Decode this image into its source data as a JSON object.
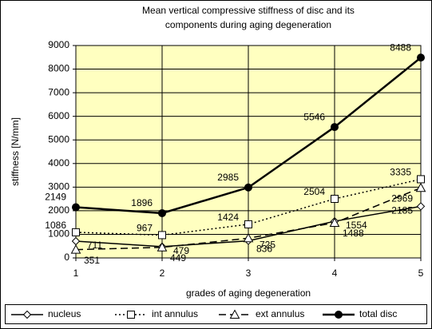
{
  "chart_data": {
    "type": "line",
    "title": [
      "Mean vertical compressive stiffness of disc and its",
      "components during aging degeneration"
    ],
    "x_label": "grades of aging degeneration",
    "y_label": "stiffness [N/mm]",
    "x": [
      1,
      2,
      3,
      4,
      5
    ],
    "xlim": [
      1,
      5
    ],
    "xticks": [
      1,
      2,
      3,
      4,
      5
    ],
    "ylim": [
      0,
      9000
    ],
    "yticks": [
      0,
      1000,
      2000,
      3000,
      4000,
      5000,
      6000,
      7000,
      8000,
      9000
    ],
    "grid": true,
    "legend": "bottom",
    "series": [
      {
        "name": "nucleus",
        "color": "#000000",
        "marker": "diamond",
        "dash": "solid",
        "values": [
          711,
          479,
          725,
          1554,
          2185
        ]
      },
      {
        "name": "int annulus",
        "color": "#000000",
        "marker": "square",
        "dash": "dotted",
        "values": [
          1086,
          967,
          1424,
          2504,
          3335
        ]
      },
      {
        "name": "ext annulus",
        "color": "#000000",
        "marker": "triangle",
        "dash": "dashed",
        "values": [
          351,
          449,
          836,
          1488,
          2969
        ]
      },
      {
        "name": "total disc",
        "color": "#000000",
        "marker": "circle",
        "dash": "thick",
        "values": [
          2149,
          1896,
          2985,
          5546,
          8488
        ]
      }
    ]
  }
}
